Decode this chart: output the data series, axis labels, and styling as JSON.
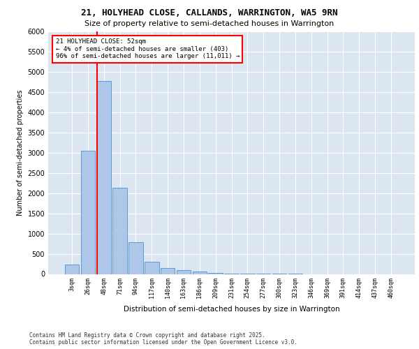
{
  "title1": "21, HOLYHEAD CLOSE, CALLANDS, WARRINGTON, WA5 9RN",
  "title2": "Size of property relative to semi-detached houses in Warrington",
  "xlabel": "Distribution of semi-detached houses by size in Warrington",
  "ylabel": "Number of semi-detached properties",
  "categories": [
    "3sqm",
    "26sqm",
    "48sqm",
    "71sqm",
    "94sqm",
    "117sqm",
    "140sqm",
    "163sqm",
    "186sqm",
    "209sqm",
    "231sqm",
    "254sqm",
    "277sqm",
    "300sqm",
    "323sqm",
    "346sqm",
    "369sqm",
    "391sqm",
    "414sqm",
    "437sqm",
    "460sqm"
  ],
  "values": [
    230,
    3050,
    4780,
    2130,
    790,
    310,
    155,
    95,
    55,
    30,
    15,
    8,
    4,
    2,
    1,
    0,
    0,
    0,
    0,
    0,
    0
  ],
  "bar_color": "#aec6e8",
  "bar_edge_color": "#5b9bd5",
  "background_color": "#dce6f1",
  "annotation_title": "21 HOLYHEAD CLOSE: 52sqm",
  "annotation_line1": "← 4% of semi-detached houses are smaller (403)",
  "annotation_line2": "96% of semi-detached houses are larger (11,011) →",
  "footer1": "Contains HM Land Registry data © Crown copyright and database right 2025.",
  "footer2": "Contains public sector information licensed under the Open Government Licence v3.0.",
  "ylim": [
    0,
    6000
  ],
  "yticks": [
    0,
    500,
    1000,
    1500,
    2000,
    2500,
    3000,
    3500,
    4000,
    4500,
    5000,
    5500,
    6000
  ],
  "red_line_x": 1.57
}
